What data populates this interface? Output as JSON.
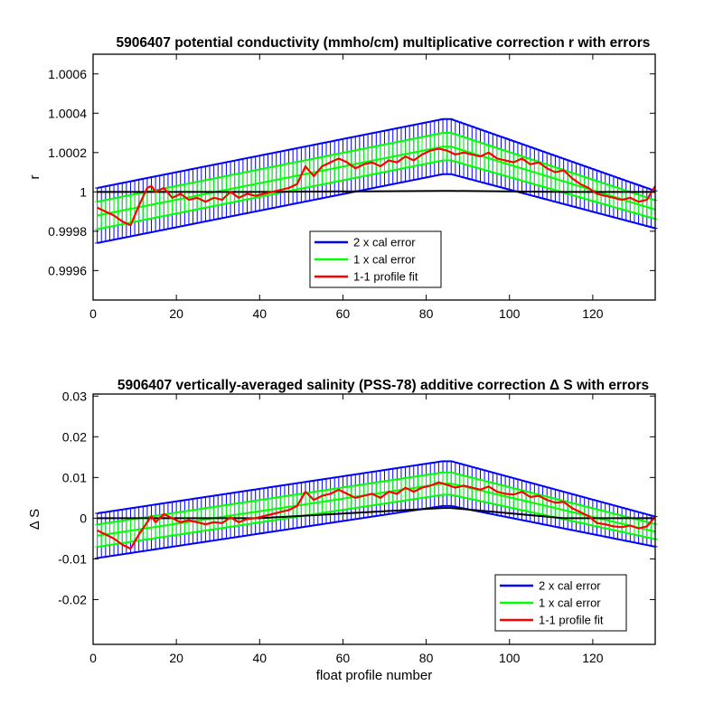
{
  "chart_data": [
    {
      "type": "line",
      "title": "5906407 potential conductivity (mmho/cm) multiplicative correction r with errors",
      "xlabel": "",
      "ylabel": "r",
      "xlim": [
        0,
        135
      ],
      "ylim": [
        0.99945,
        1.0007
      ],
      "xticks": [
        0,
        20,
        40,
        60,
        80,
        100,
        120
      ],
      "xtick_labels": [
        "0",
        "20",
        "40",
        "60",
        "80",
        "100",
        "120"
      ],
      "yticks": [
        0.9996,
        0.9998,
        1.0,
        1.0002,
        1.0004,
        1.0006
      ],
      "ytick_labels": [
        "0.9996",
        "0.9998",
        "1",
        "1.0002",
        "1.0004",
        "1.0006"
      ],
      "grid": false,
      "legend_position": "lower-center",
      "legend": [
        "2 x cal error",
        "1 x cal error",
        "1-1 profile fit"
      ],
      "series": [
        {
          "name": "2 x cal error",
          "color": "#0000ff",
          "x": [
            1,
            84,
            86,
            135
          ],
          "center": [
            0.99988,
            1.00023,
            1.00023,
            0.99991
          ],
          "half_width": [
            0.00014,
            0.00014,
            0.00014,
            9.5e-05
          ]
        },
        {
          "name": "1 x cal error",
          "color": "#00ff00",
          "x": [
            1,
            84,
            86,
            135
          ],
          "center": [
            0.99988,
            1.00023,
            1.00023,
            0.99991
          ],
          "half_width": [
            7e-05,
            7e-05,
            7e-05,
            4.75e-05
          ]
        },
        {
          "name": "1-1 profile fit",
          "color": "#ff0000",
          "x": [
            1,
            3,
            5,
            7,
            9,
            11,
            13,
            14,
            15,
            17,
            19,
            21,
            23,
            25,
            27,
            29,
            31,
            33,
            35,
            37,
            39,
            41,
            43,
            45,
            47,
            49,
            51,
            53,
            55,
            57,
            59,
            61,
            63,
            65,
            67,
            69,
            71,
            73,
            75,
            77,
            79,
            81,
            83,
            85,
            87,
            89,
            91,
            93,
            95,
            97,
            99,
            101,
            103,
            105,
            107,
            109,
            111,
            113,
            115,
            117,
            119,
            121,
            123,
            125,
            127,
            129,
            131,
            133,
            135
          ],
          "values": [
            0.99992,
            0.9999,
            0.99988,
            0.99985,
            0.99983,
            0.99993,
            1.00002,
            1.00003,
            1.0,
            1.00002,
            0.99997,
            0.99999,
            0.99996,
            0.99997,
            0.99995,
            0.99997,
            0.99996,
            1.0,
            0.99997,
            0.99999,
            0.99998,
            0.99999,
            1.0,
            1.00001,
            1.00002,
            1.00004,
            1.00013,
            1.00008,
            1.00013,
            1.00015,
            1.00017,
            1.00015,
            1.00012,
            1.00014,
            1.00015,
            1.00013,
            1.00016,
            1.00015,
            1.00018,
            1.00016,
            1.00019,
            1.00021,
            1.00022,
            1.00021,
            1.00019,
            1.0002,
            1.00019,
            1.00018,
            1.0002,
            1.00017,
            1.00016,
            1.00015,
            1.00017,
            1.00014,
            1.00015,
            1.00012,
            1.0001,
            1.00011,
            1.00007,
            1.00004,
            1.00002,
            0.99999,
            0.99998,
            0.99997,
            0.99996,
            0.99997,
            0.99995,
            0.99996,
            1.00003
          ]
        }
      ],
      "reference_line": {
        "color": "#000000",
        "x": [
          1,
          40,
          84,
          86,
          113,
          135
        ],
        "values": [
          1.0,
          1.0,
          1.000005,
          1.000005,
          1.0,
          1.0
        ]
      }
    },
    {
      "type": "line",
      "title": "5906407 vertically-averaged salinity (PSS-78) additive correction Δ S with errors",
      "xlabel": "float profile number",
      "ylabel": "Δ S",
      "xlim": [
        0,
        135
      ],
      "ylim": [
        -0.031,
        0.0305
      ],
      "xticks": [
        0,
        20,
        40,
        60,
        80,
        100,
        120
      ],
      "xtick_labels": [
        "0",
        "20",
        "40",
        "60",
        "80",
        "100",
        "120"
      ],
      "yticks": [
        -0.02,
        -0.01,
        0,
        0.01,
        0.02,
        0.03
      ],
      "ytick_labels": [
        "-0.02",
        "-0.01",
        "0",
        "0.01",
        "0.02",
        "0.03"
      ],
      "grid": false,
      "legend_position": "lower-right",
      "legend": [
        "2 x cal error",
        "1 x cal error",
        "1-1 profile fit"
      ],
      "series": [
        {
          "name": "2 x cal error",
          "color": "#0000ff",
          "x": [
            1,
            84,
            86,
            135
          ],
          "center": [
            -0.0043,
            0.0085,
            0.0085,
            -0.0033
          ],
          "half_width": [
            0.0055,
            0.0055,
            0.0055,
            0.0037
          ]
        },
        {
          "name": "1 x cal error",
          "color": "#00ff00",
          "x": [
            1,
            84,
            86,
            135
          ],
          "center": [
            -0.0043,
            0.0085,
            0.0085,
            -0.0033
          ],
          "half_width": [
            0.00275,
            0.00275,
            0.00275,
            0.00185
          ]
        },
        {
          "name": "1-1 profile fit",
          "color": "#ff0000",
          "x": [
            1,
            3,
            5,
            7,
            9,
            11,
            13,
            14,
            15,
            17,
            19,
            21,
            23,
            25,
            27,
            29,
            31,
            33,
            35,
            37,
            39,
            41,
            43,
            45,
            47,
            49,
            51,
            53,
            55,
            57,
            59,
            61,
            63,
            65,
            67,
            69,
            71,
            73,
            75,
            77,
            79,
            81,
            83,
            85,
            87,
            89,
            91,
            93,
            95,
            97,
            99,
            101,
            103,
            105,
            107,
            109,
            111,
            113,
            115,
            117,
            119,
            121,
            123,
            125,
            127,
            129,
            131,
            133,
            135
          ],
          "values": [
            -0.003,
            -0.004,
            -0.005,
            -0.0065,
            -0.0075,
            -0.004,
            -0.001,
            0.0005,
            -0.001,
            0.001,
            0.0,
            -0.001,
            -0.0005,
            -0.001,
            -0.0015,
            -0.001,
            -0.0012,
            0.0002,
            -0.001,
            -0.0002,
            0.0,
            0.0005,
            0.001,
            0.0015,
            0.002,
            0.003,
            0.0065,
            0.0045,
            0.0055,
            0.006,
            0.007,
            0.006,
            0.005,
            0.0055,
            0.006,
            0.005,
            0.0065,
            0.006,
            0.0075,
            0.0065,
            0.0075,
            0.008,
            0.0088,
            0.0082,
            0.0075,
            0.008,
            0.0075,
            0.007,
            0.0078,
            0.0065,
            0.006,
            0.0058,
            0.0065,
            0.0052,
            0.0055,
            0.0045,
            0.0038,
            0.004,
            0.0025,
            0.0015,
            0.0005,
            -0.0012,
            -0.0015,
            -0.002,
            -0.0022,
            -0.0018,
            -0.0025,
            -0.002,
            0.0003
          ]
        }
      ],
      "reference_line": {
        "color": "#000000",
        "x": [
          1,
          40,
          84,
          86,
          113,
          135
        ],
        "values": [
          0.0,
          0.0,
          0.0025,
          0.0025,
          0.0,
          0.0
        ]
      }
    }
  ]
}
